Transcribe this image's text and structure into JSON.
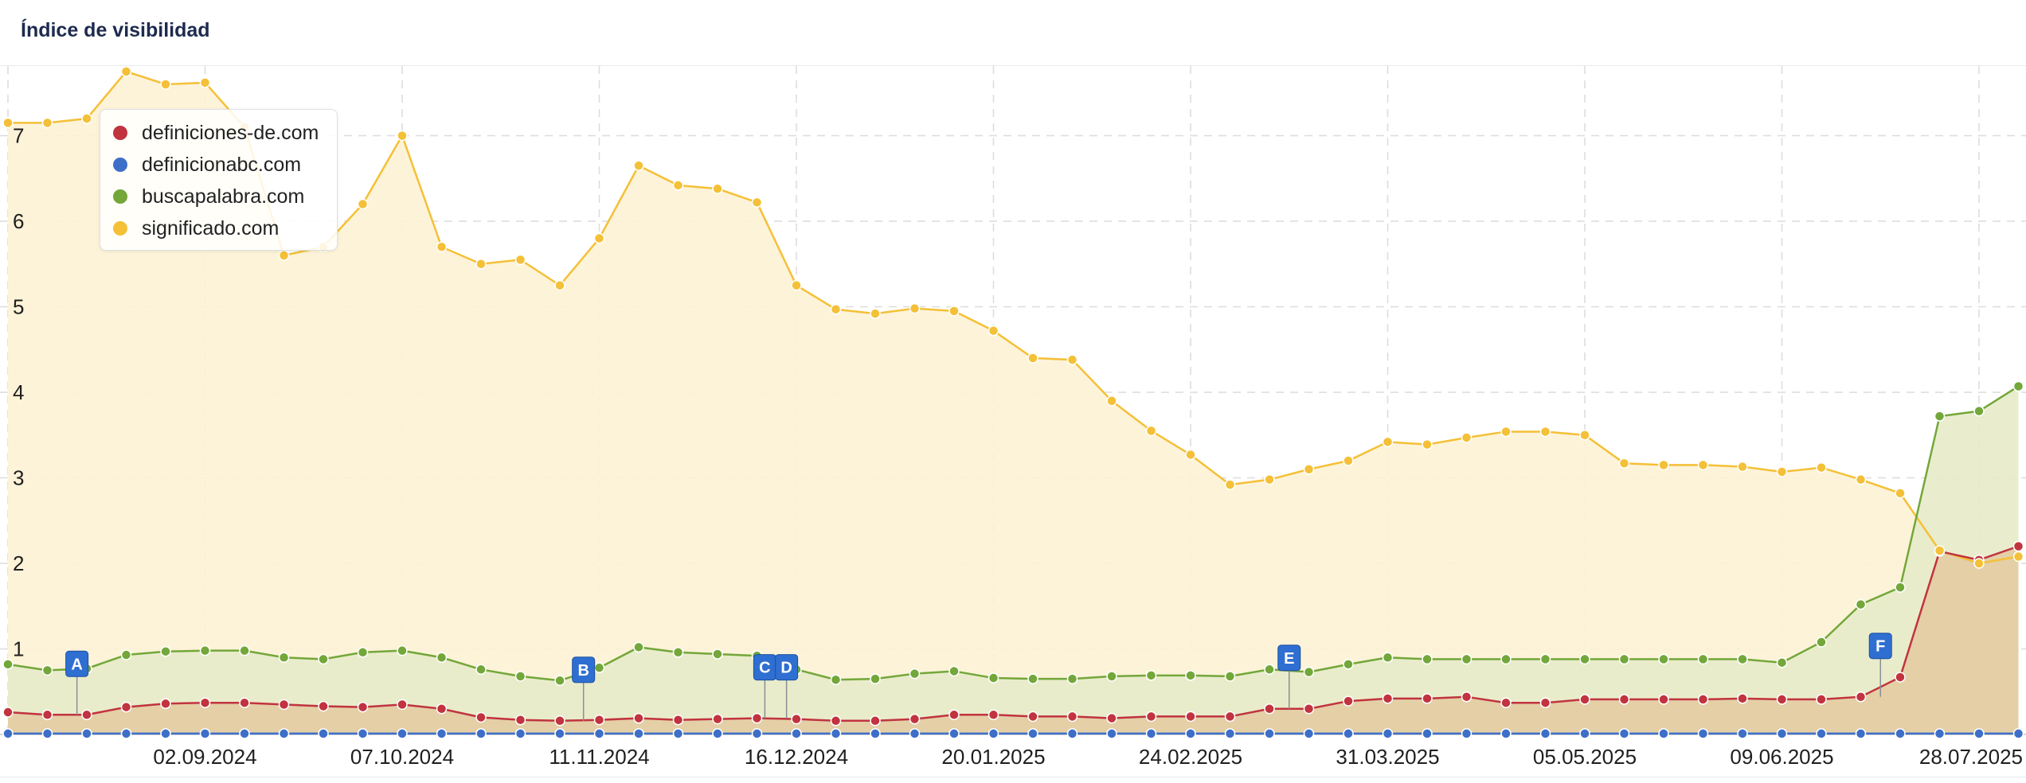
{
  "header": {
    "title": "Índice de visibilidad"
  },
  "chart_data": {
    "type": "line",
    "ylim": [
      0,
      7.5
    ],
    "yticks": [
      1,
      2,
      3,
      4,
      5,
      6,
      7
    ],
    "grid": true,
    "legend_position": "top-left",
    "x_tick_labels": [
      "02.09.2024",
      "07.10.2024",
      "11.11.2024",
      "16.12.2024",
      "20.01.2025",
      "24.02.2025",
      "31.03.2025",
      "05.05.2025",
      "09.06.2025",
      "28.07.2025"
    ],
    "x_start_label": "",
    "series": [
      {
        "name": "significado.com",
        "color": "#f4c037",
        "fill": "#fdf2d4",
        "values": [
          7.15,
          7.15,
          7.2,
          7.75,
          7.6,
          7.62,
          7.1,
          5.6,
          5.7,
          6.2,
          7.0,
          5.7,
          5.5,
          5.55,
          5.25,
          5.8,
          6.65,
          6.42,
          6.38,
          6.22,
          5.25,
          4.97,
          4.92,
          4.98,
          4.95,
          4.72,
          4.4,
          4.38,
          3.9,
          3.55,
          3.27,
          2.92,
          2.98,
          3.1,
          3.2,
          3.42,
          3.39,
          3.47,
          3.54,
          3.54,
          3.5,
          3.17,
          3.15,
          3.15,
          3.13,
          3.07,
          3.12,
          2.98,
          2.82,
          2.15,
          2.0,
          2.08
        ]
      },
      {
        "name": "buscapalabra.com",
        "color": "#73a73a",
        "fill": "#e7ebc9",
        "values": [
          0.82,
          0.75,
          0.77,
          0.93,
          0.97,
          0.98,
          0.98,
          0.9,
          0.88,
          0.96,
          0.98,
          0.9,
          0.76,
          0.68,
          0.63,
          0.78,
          1.02,
          0.96,
          0.94,
          0.92,
          0.76,
          0.64,
          0.65,
          0.71,
          0.74,
          0.66,
          0.65,
          0.65,
          0.68,
          0.69,
          0.69,
          0.68,
          0.76,
          0.73,
          0.82,
          0.9,
          0.88,
          0.88,
          0.88,
          0.88,
          0.88,
          0.88,
          0.88,
          0.88,
          0.88,
          0.84,
          1.08,
          1.52,
          1.72,
          3.72,
          3.78,
          4.07
        ]
      },
      {
        "name": "definiciones-de.com",
        "color": "#c1333f",
        "fill": "#e3cca2",
        "values": [
          0.26,
          0.23,
          0.23,
          0.32,
          0.36,
          0.37,
          0.37,
          0.35,
          0.33,
          0.32,
          0.35,
          0.3,
          0.2,
          0.17,
          0.16,
          0.17,
          0.19,
          0.17,
          0.18,
          0.19,
          0.18,
          0.16,
          0.16,
          0.18,
          0.23,
          0.23,
          0.21,
          0.21,
          0.19,
          0.21,
          0.21,
          0.21,
          0.3,
          0.3,
          0.39,
          0.42,
          0.42,
          0.44,
          0.37,
          0.37,
          0.41,
          0.41,
          0.41,
          0.41,
          0.42,
          0.41,
          0.41,
          0.44,
          0.67,
          2.14,
          2.04,
          2.2
        ]
      },
      {
        "name": "definicionabc.com",
        "color": "#3e6fc8",
        "fill": "none",
        "values": [
          0.01,
          0.01,
          0.01,
          0.01,
          0.01,
          0.01,
          0.01,
          0.01,
          0.01,
          0.01,
          0.01,
          0.01,
          0.01,
          0.01,
          0.01,
          0.01,
          0.01,
          0.01,
          0.01,
          0.01,
          0.01,
          0.01,
          0.01,
          0.01,
          0.01,
          0.01,
          0.01,
          0.01,
          0.01,
          0.01,
          0.01,
          0.01,
          0.01,
          0.01,
          0.01,
          0.01,
          0.01,
          0.01,
          0.01,
          0.01,
          0.01,
          0.01,
          0.01,
          0.01,
          0.01,
          0.01,
          0.01,
          0.01,
          0.01,
          0.01,
          0.01,
          0.01
        ]
      }
    ],
    "annotations": [
      {
        "label": "A",
        "index": 1.75,
        "value": 0.23
      },
      {
        "label": "B",
        "index": 14.6,
        "value": 0.16
      },
      {
        "label": "C",
        "index": 19.2,
        "value": 0.19
      },
      {
        "label": "D",
        "index": 19.75,
        "value": 0.19
      },
      {
        "label": "E",
        "index": 32.5,
        "value": 0.3
      },
      {
        "label": "F",
        "index": 47.5,
        "value": 0.44
      }
    ]
  },
  "legend": {
    "items": [
      {
        "label": "definiciones-de.com",
        "color": "#c1333f"
      },
      {
        "label": "definicionabc.com",
        "color": "#3e6fc8"
      },
      {
        "label": "buscapalabra.com",
        "color": "#73a73a"
      },
      {
        "label": "significado.com",
        "color": "#f4c037"
      }
    ]
  }
}
